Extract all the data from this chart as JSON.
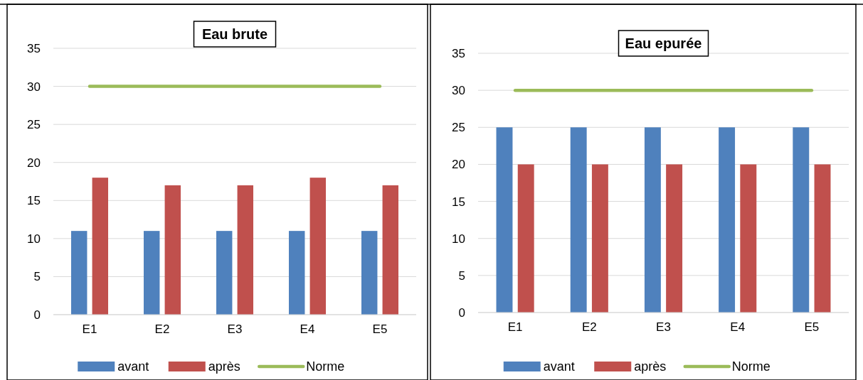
{
  "chart_data": [
    {
      "type": "bar",
      "title": "Eau brute",
      "categories": [
        "E1",
        "E2",
        "E3",
        "E4",
        "E5"
      ],
      "series": [
        {
          "name": "avant",
          "color": "#4f81bd",
          "values": [
            11,
            11,
            11,
            11,
            11
          ]
        },
        {
          "name": "après",
          "color": "#c0504d",
          "values": [
            18,
            17,
            17,
            18,
            17
          ]
        },
        {
          "name": "Norme",
          "type": "line",
          "color": "#9bbb59",
          "values": [
            30,
            30,
            30,
            30,
            30
          ]
        }
      ],
      "ylim": [
        0,
        35
      ],
      "yticks": [
        0,
        5,
        10,
        15,
        20,
        25,
        30,
        35
      ],
      "grid": "y",
      "legend": "bottom",
      "marker": "none"
    },
    {
      "type": "bar",
      "title": "Eau epurée",
      "categories": [
        "E1",
        "E2",
        "E3",
        "E4",
        "E5"
      ],
      "series": [
        {
          "name": "avant",
          "color": "#4f81bd",
          "values": [
            25,
            25,
            25,
            25,
            25
          ]
        },
        {
          "name": "après",
          "color": "#c0504d",
          "values": [
            20,
            20,
            20,
            20,
            20
          ]
        },
        {
          "name": "Norme",
          "type": "line",
          "color": "#9bbb59",
          "values": [
            30,
            30,
            30,
            30,
            30
          ]
        }
      ],
      "ylim": [
        0,
        35
      ],
      "yticks": [
        0,
        5,
        10,
        15,
        20,
        25,
        30,
        35
      ],
      "grid": "y",
      "legend": "bottom",
      "marker": "none"
    }
  ]
}
